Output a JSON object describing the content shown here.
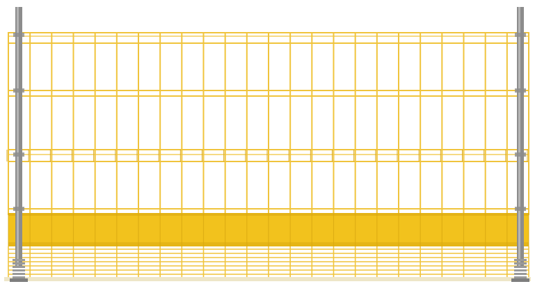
{
  "scene": {
    "subject": "fence-panel",
    "colors": {
      "background": "#ffffff",
      "mesh": "#f0c43c",
      "mesh_dark": "#d9a91e",
      "toe_board": "#f2c21d",
      "toe_board_shade": "#d8a70f",
      "post": "#8c8c8c",
      "post_light": "#b5b5b5",
      "base": "#9a9a9a"
    },
    "counts": {
      "vertical_wires": 24,
      "posts": 2
    }
  }
}
